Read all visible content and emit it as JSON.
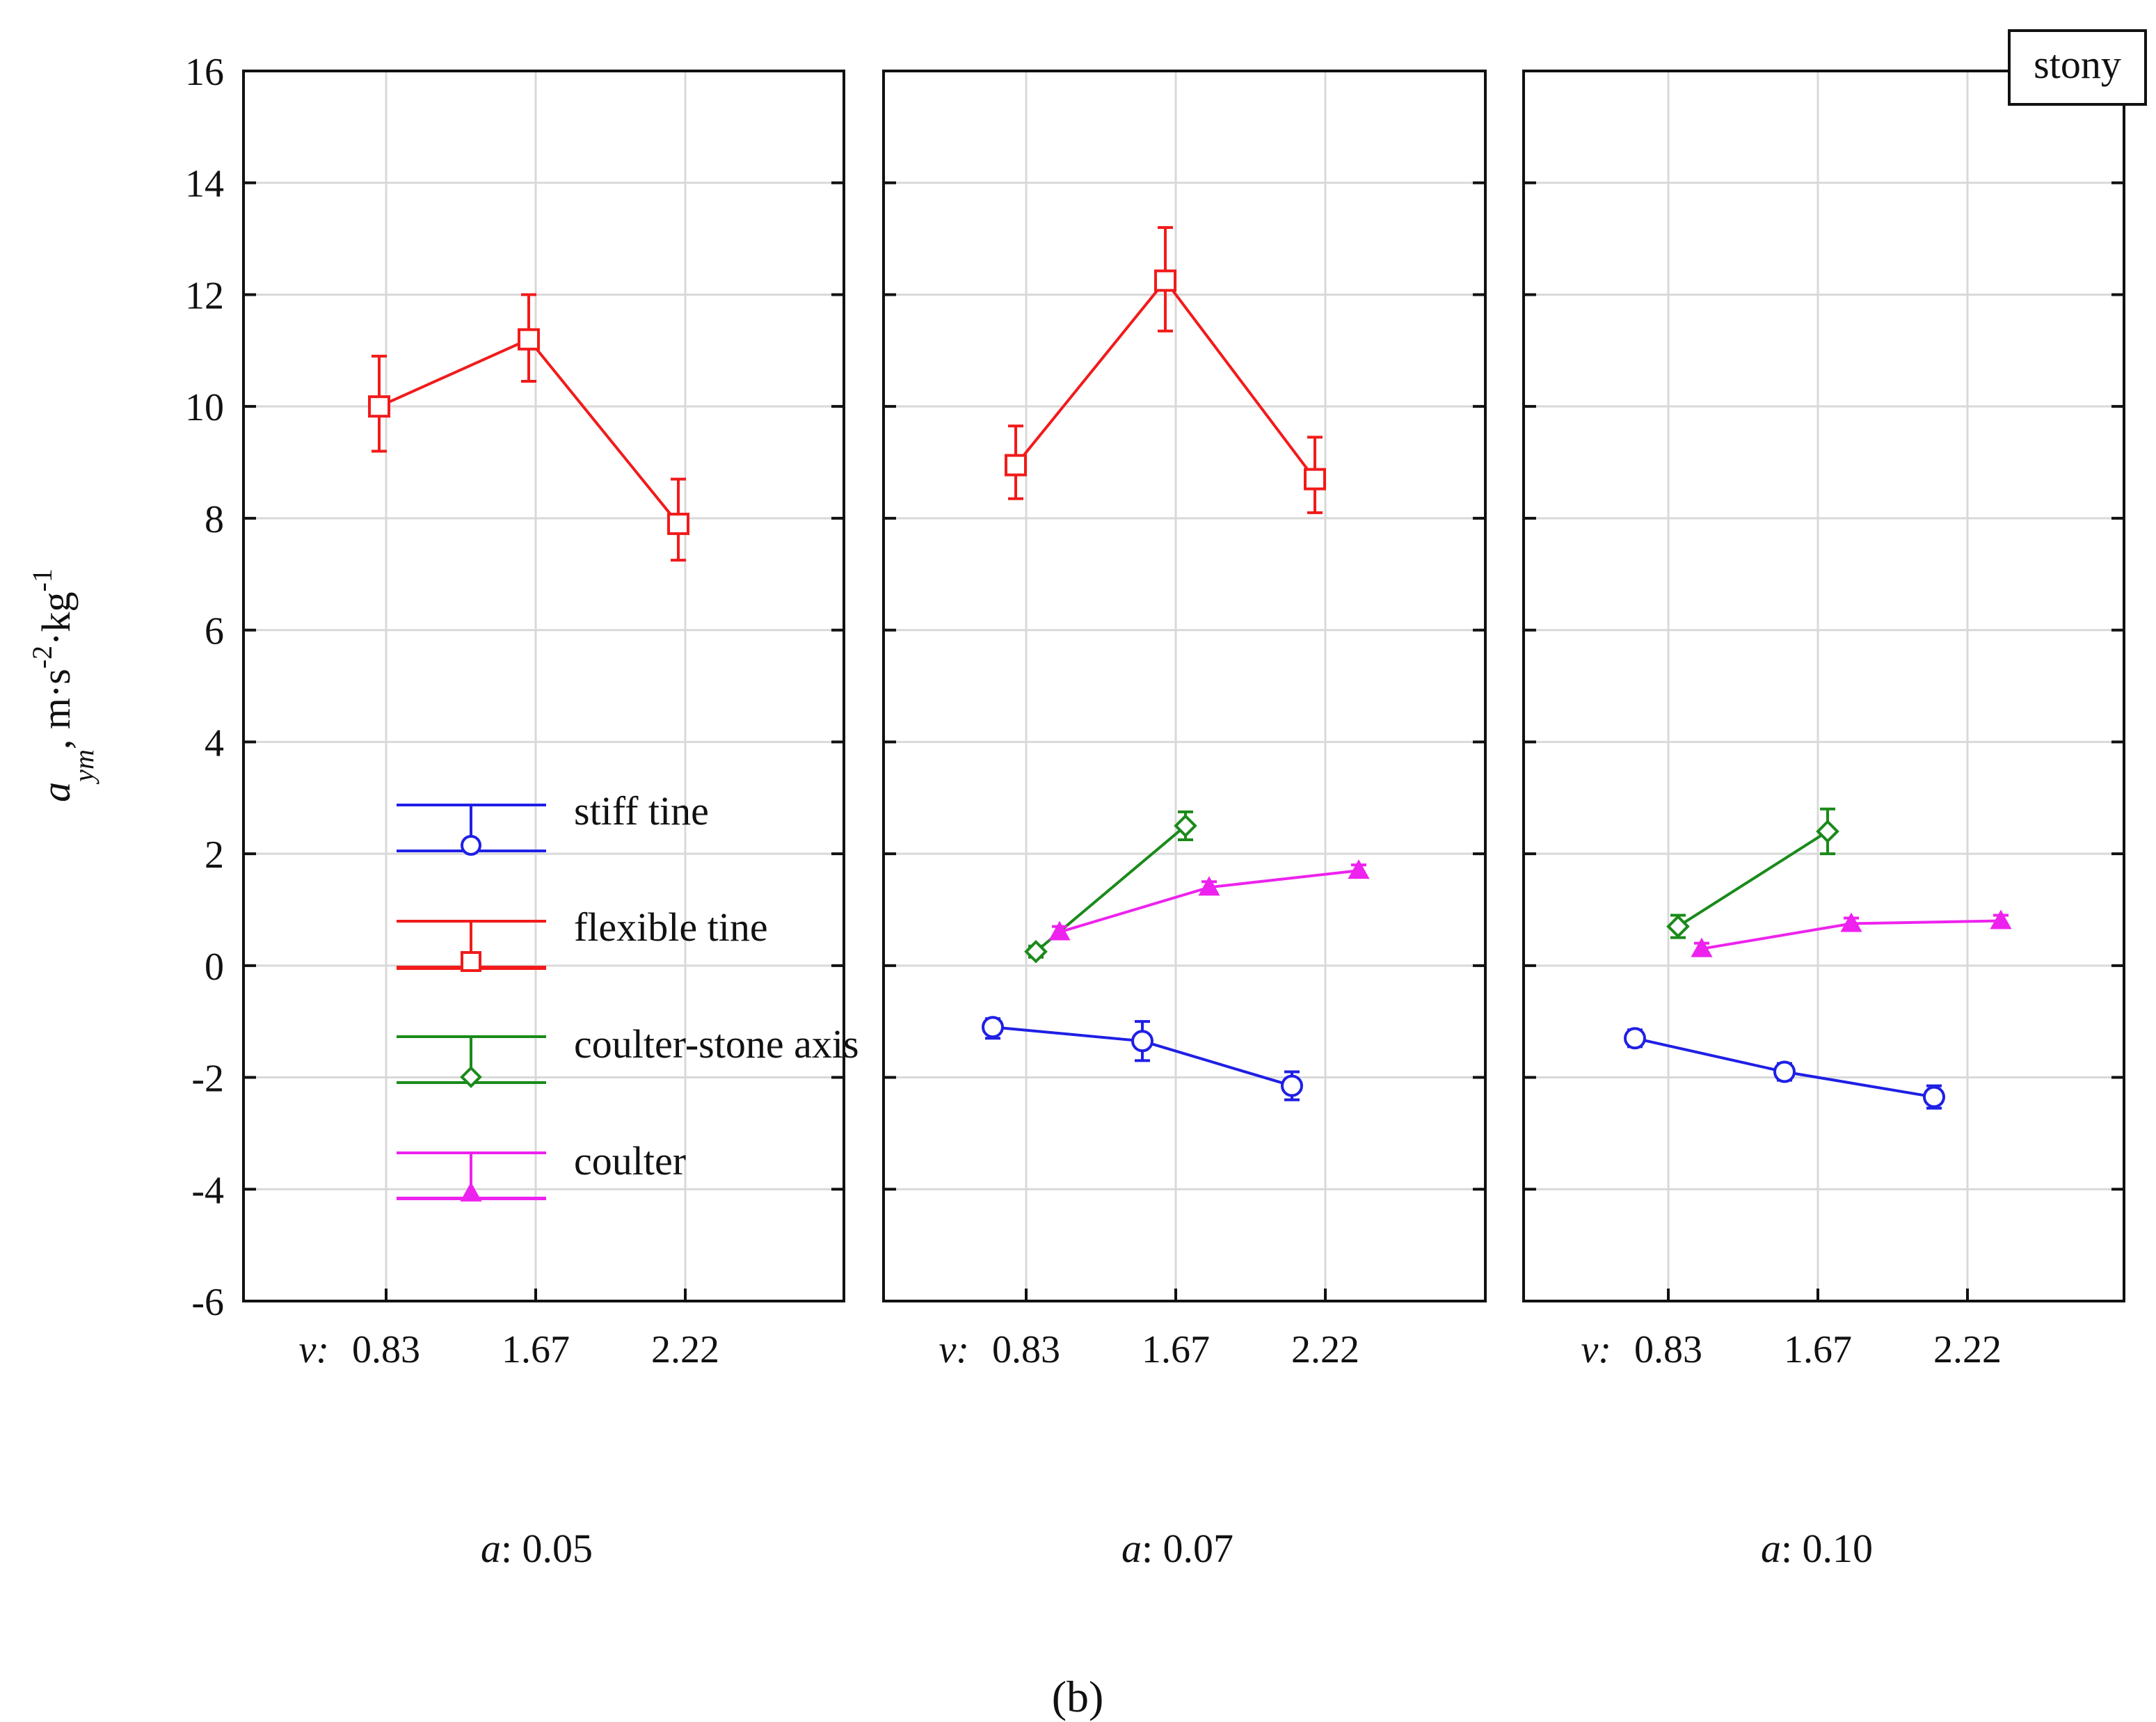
{
  "chart_data": {
    "type": "line",
    "subtitle": "(b)",
    "condition_label": "stony",
    "ylabel": {
      "symbol": "a",
      "subscript": "ym",
      "units": ", m·s",
      "sup1": "-2",
      "mid": "·kg",
      "sup2": "-1"
    },
    "ylim": [
      -6,
      16
    ],
    "yticks": [
      16,
      14,
      12,
      10,
      8,
      6,
      4,
      2,
      0,
      -2,
      -4,
      -6
    ],
    "x_prefix": "v:",
    "xtick_labels": [
      "0.83",
      "1.67",
      "2.22"
    ],
    "panel_prefix": "a:",
    "legend": {
      "position": "lower-left of first panel",
      "entries": [
        "stiff tine",
        "flexible tine",
        "coulter-stone axis",
        "coulter"
      ]
    },
    "series_styles": [
      {
        "name": "stiff tine",
        "color": "#1f1fe6",
        "marker": "circle"
      },
      {
        "name": "flexible tine",
        "color": "#f21a1a",
        "marker": "square"
      },
      {
        "name": "coulter-stone axis",
        "color": "#1a8a1a",
        "marker": "diamond"
      },
      {
        "name": "coulter",
        "color": "#ee22ee",
        "marker": "triangle"
      }
    ],
    "panels": [
      {
        "a": "0.05",
        "series": [
          {
            "name": "flexible tine",
            "points": [
              {
                "v": 0.83,
                "y": 10.0,
                "lo": 9.2,
                "hi": 10.9
              },
              {
                "v": 1.67,
                "y": 11.2,
                "lo": 10.45,
                "hi": 12.0
              },
              {
                "v": 2.22,
                "y": 7.9,
                "lo": 7.25,
                "hi": 8.7
              }
            ]
          }
        ]
      },
      {
        "a": "0.07",
        "series": [
          {
            "name": "flexible tine",
            "points": [
              {
                "v": 0.83,
                "y": 8.95,
                "lo": 8.35,
                "hi": 9.65
              },
              {
                "v": 1.67,
                "y": 12.25,
                "lo": 11.35,
                "hi": 13.2
              },
              {
                "v": 2.22,
                "y": 8.7,
                "lo": 8.1,
                "hi": 9.45
              }
            ]
          },
          {
            "name": "stiff tine",
            "points": [
              {
                "v": 0.83,
                "y": -1.1,
                "lo": -1.3,
                "hi": -0.95
              },
              {
                "v": 1.67,
                "y": -1.35,
                "lo": -1.7,
                "hi": -1.0
              },
              {
                "v": 2.22,
                "y": -2.15,
                "lo": -2.4,
                "hi": -1.9
              }
            ]
          },
          {
            "name": "coulter-stone axis",
            "points": [
              {
                "v": 0.83,
                "y": 0.25,
                "lo": 0.15,
                "hi": 0.35
              },
              {
                "v": 1.67,
                "y": 2.5,
                "lo": 2.25,
                "hi": 2.75
              }
            ]
          },
          {
            "name": "coulter",
            "points": [
              {
                "v": 0.83,
                "y": 0.6,
                "lo": 0.5,
                "hi": 0.7
              },
              {
                "v": 1.67,
                "y": 1.4,
                "lo": 1.3,
                "hi": 1.5
              },
              {
                "v": 2.22,
                "y": 1.7,
                "lo": 1.6,
                "hi": 1.8
              }
            ]
          }
        ]
      },
      {
        "a": "0.10",
        "series": [
          {
            "name": "stiff tine",
            "points": [
              {
                "v": 0.83,
                "y": -1.3,
                "lo": -1.45,
                "hi": -1.15
              },
              {
                "v": 1.67,
                "y": -1.9,
                "lo": -2.05,
                "hi": -1.75
              },
              {
                "v": 2.22,
                "y": -2.35,
                "lo": -2.55,
                "hi": -2.15
              }
            ]
          },
          {
            "name": "coulter-stone axis",
            "points": [
              {
                "v": 0.83,
                "y": 0.7,
                "lo": 0.5,
                "hi": 0.9
              },
              {
                "v": 1.67,
                "y": 2.4,
                "lo": 2.0,
                "hi": 2.8
              }
            ]
          },
          {
            "name": "coulter",
            "points": [
              {
                "v": 0.83,
                "y": 0.3,
                "lo": 0.2,
                "hi": 0.4
              },
              {
                "v": 1.67,
                "y": 0.75,
                "lo": 0.65,
                "hi": 0.85
              },
              {
                "v": 2.22,
                "y": 0.8,
                "lo": 0.7,
                "hi": 0.9
              }
            ]
          }
        ]
      }
    ]
  }
}
